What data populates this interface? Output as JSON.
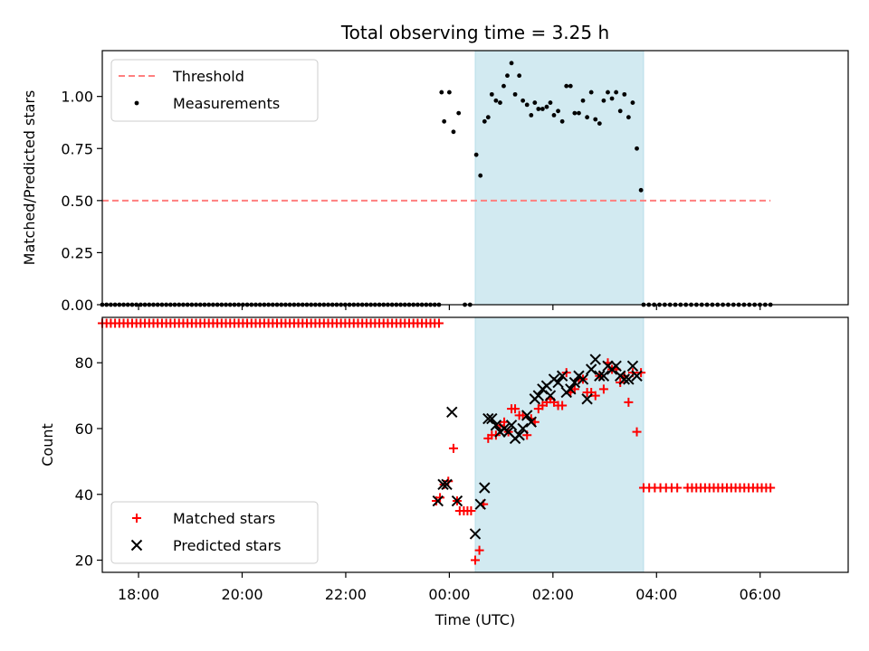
{
  "chart_data": {
    "type": "scatter",
    "title": "Total observing time = 3.25 h",
    "xlabel": "Time (UTC)",
    "x_unit": "hours relative to 00:00 UTC",
    "xlim": [
      -6.7,
      7.7
    ],
    "xticks": [
      {
        "value": -6,
        "label": "18:00"
      },
      {
        "value": -4,
        "label": "20:00"
      },
      {
        "value": -2,
        "label": "22:00"
      },
      {
        "value": 0,
        "label": "00:00"
      },
      {
        "value": 2,
        "label": "02:00"
      },
      {
        "value": 4,
        "label": "04:00"
      },
      {
        "value": 6,
        "label": "06:00"
      }
    ],
    "shaded_interval": {
      "start": 0.5,
      "end": 3.75,
      "color": "#add8e6"
    },
    "panels": [
      {
        "id": "ratio",
        "ylabel": "Matched/Predicted stars",
        "ylim": [
          0,
          1.22
        ],
        "yticks": [
          {
            "value": 0,
            "label": "0.00"
          },
          {
            "value": 0.25,
            "label": "0.25"
          },
          {
            "value": 0.5,
            "label": "0.50"
          },
          {
            "value": 0.75,
            "label": "0.75"
          },
          {
            "value": 1.0,
            "label": "1.00"
          }
        ],
        "legend": {
          "position": "top-left",
          "entries": [
            {
              "label": "Threshold",
              "marker": "dashed-line",
              "color": "#ff7f7f"
            },
            {
              "label": "Measurements",
              "marker": "dot",
              "color": "#000000"
            }
          ]
        },
        "threshold": {
          "y": 0.5,
          "x_start": -6.7,
          "x_end": 6.2
        },
        "measurements": {
          "zeros_before": {
            "x_start": -6.7,
            "x_end": -0.2,
            "count": 80
          },
          "zeros_after": {
            "x_start": 3.75,
            "x_end": 6.2,
            "count": 25
          },
          "points": [
            [
              -0.15,
              1.02
            ],
            [
              -0.1,
              0.88
            ],
            [
              0.0,
              1.02
            ],
            [
              0.08,
              0.83
            ],
            [
              0.18,
              0.92
            ],
            [
              0.3,
              0.0
            ],
            [
              0.4,
              0.0
            ],
            [
              0.52,
              0.72
            ],
            [
              0.6,
              0.62
            ],
            [
              0.68,
              0.88
            ],
            [
              0.75,
              0.9
            ],
            [
              0.82,
              1.01
            ],
            [
              0.9,
              0.98
            ],
            [
              0.98,
              0.97
            ],
            [
              1.05,
              1.05
            ],
            [
              1.12,
              1.1
            ],
            [
              1.2,
              1.16
            ],
            [
              1.27,
              1.01
            ],
            [
              1.35,
              1.1
            ],
            [
              1.42,
              0.98
            ],
            [
              1.5,
              0.96
            ],
            [
              1.58,
              0.91
            ],
            [
              1.65,
              0.97
            ],
            [
              1.72,
              0.94
            ],
            [
              1.8,
              0.94
            ],
            [
              1.88,
              0.95
            ],
            [
              1.95,
              0.97
            ],
            [
              2.02,
              0.91
            ],
            [
              2.1,
              0.93
            ],
            [
              2.18,
              0.88
            ],
            [
              2.26,
              1.05
            ],
            [
              2.34,
              1.05
            ],
            [
              2.42,
              0.92
            ],
            [
              2.5,
              0.92
            ],
            [
              2.58,
              0.98
            ],
            [
              2.66,
              0.9
            ],
            [
              2.74,
              1.02
            ],
            [
              2.82,
              0.89
            ],
            [
              2.9,
              0.87
            ],
            [
              2.98,
              0.98
            ],
            [
              3.06,
              1.02
            ],
            [
              3.14,
              0.99
            ],
            [
              3.22,
              1.02
            ],
            [
              3.3,
              0.93
            ],
            [
              3.38,
              1.01
            ],
            [
              3.46,
              0.9
            ],
            [
              3.54,
              0.97
            ],
            [
              3.62,
              0.75
            ],
            [
              3.7,
              0.55
            ]
          ]
        }
      },
      {
        "id": "count",
        "ylabel": "Count",
        "ylim": [
          16.3,
          93.8
        ],
        "yticks": [
          {
            "value": 20,
            "label": "20"
          },
          {
            "value": 40,
            "label": "40"
          },
          {
            "value": 60,
            "label": "60"
          },
          {
            "value": 80,
            "label": "80"
          }
        ],
        "legend": {
          "position": "bottom-left",
          "entries": [
            {
              "label": "Matched stars",
              "marker": "plus",
              "color": "#ff0000"
            },
            {
              "label": "Predicted stars",
              "marker": "x",
              "color": "#000000"
            }
          ]
        },
        "matched_constant_before": {
          "x_start": -6.7,
          "x_end": -0.2,
          "value": 92,
          "count": 80
        },
        "matched_constant_after": [
          {
            "x_start": 3.75,
            "x_end": 4.4,
            "value": 42,
            "count": 7
          },
          {
            "x_start": 4.6,
            "x_end": 6.2,
            "value": 42,
            "count": 20
          }
        ],
        "matched_points": [
          [
            -0.25,
            38
          ],
          [
            -0.18,
            39
          ],
          [
            -0.1,
            43
          ],
          [
            -0.02,
            44
          ],
          [
            0.08,
            54
          ],
          [
            0.15,
            38
          ],
          [
            0.2,
            35
          ],
          [
            0.28,
            35
          ],
          [
            0.35,
            35
          ],
          [
            0.42,
            35
          ],
          [
            0.5,
            20
          ],
          [
            0.58,
            23
          ],
          [
            0.66,
            37
          ],
          [
            0.75,
            57
          ],
          [
            0.82,
            58
          ],
          [
            0.9,
            58
          ],
          [
            0.98,
            61
          ],
          [
            1.06,
            62
          ],
          [
            1.14,
            59
          ],
          [
            1.2,
            66
          ],
          [
            1.27,
            66
          ],
          [
            1.35,
            64
          ],
          [
            1.42,
            64
          ],
          [
            1.5,
            58
          ],
          [
            1.58,
            63
          ],
          [
            1.65,
            62
          ],
          [
            1.72,
            66
          ],
          [
            1.8,
            67
          ],
          [
            1.88,
            68
          ],
          [
            1.95,
            69
          ],
          [
            2.02,
            68
          ],
          [
            2.1,
            67
          ],
          [
            2.18,
            67
          ],
          [
            2.26,
            77
          ],
          [
            2.34,
            71
          ],
          [
            2.42,
            72
          ],
          [
            2.5,
            75
          ],
          [
            2.58,
            75
          ],
          [
            2.66,
            71
          ],
          [
            2.74,
            71
          ],
          [
            2.82,
            70
          ],
          [
            2.9,
            76
          ],
          [
            2.98,
            72
          ],
          [
            3.06,
            80
          ],
          [
            3.14,
            78
          ],
          [
            3.22,
            78
          ],
          [
            3.3,
            74
          ],
          [
            3.38,
            76
          ],
          [
            3.46,
            68
          ],
          [
            3.54,
            77
          ],
          [
            3.62,
            59
          ],
          [
            3.7,
            77
          ]
        ],
        "predicted_points": [
          [
            -0.22,
            38
          ],
          [
            -0.12,
            43
          ],
          [
            -0.05,
            43
          ],
          [
            0.05,
            65
          ],
          [
            0.15,
            38
          ],
          [
            0.5,
            28
          ],
          [
            0.6,
            37
          ],
          [
            0.68,
            42
          ],
          [
            0.75,
            63
          ],
          [
            0.82,
            63
          ],
          [
            0.9,
            61
          ],
          [
            0.98,
            59
          ],
          [
            1.06,
            60
          ],
          [
            1.14,
            59
          ],
          [
            1.2,
            61
          ],
          [
            1.27,
            57
          ],
          [
            1.35,
            58
          ],
          [
            1.42,
            60
          ],
          [
            1.5,
            64
          ],
          [
            1.58,
            62
          ],
          [
            1.65,
            69
          ],
          [
            1.72,
            70
          ],
          [
            1.8,
            72
          ],
          [
            1.88,
            73
          ],
          [
            1.95,
            70
          ],
          [
            2.02,
            75
          ],
          [
            2.1,
            74
          ],
          [
            2.18,
            76
          ],
          [
            2.26,
            71
          ],
          [
            2.34,
            72
          ],
          [
            2.42,
            74
          ],
          [
            2.5,
            76
          ],
          [
            2.58,
            75
          ],
          [
            2.66,
            69
          ],
          [
            2.74,
            78
          ],
          [
            2.82,
            81
          ],
          [
            2.9,
            76
          ],
          [
            2.98,
            76
          ],
          [
            3.06,
            79
          ],
          [
            3.14,
            78
          ],
          [
            3.22,
            79
          ],
          [
            3.3,
            76
          ],
          [
            3.38,
            75
          ],
          [
            3.46,
            75
          ],
          [
            3.54,
            79
          ],
          [
            3.62,
            76
          ]
        ]
      }
    ]
  }
}
